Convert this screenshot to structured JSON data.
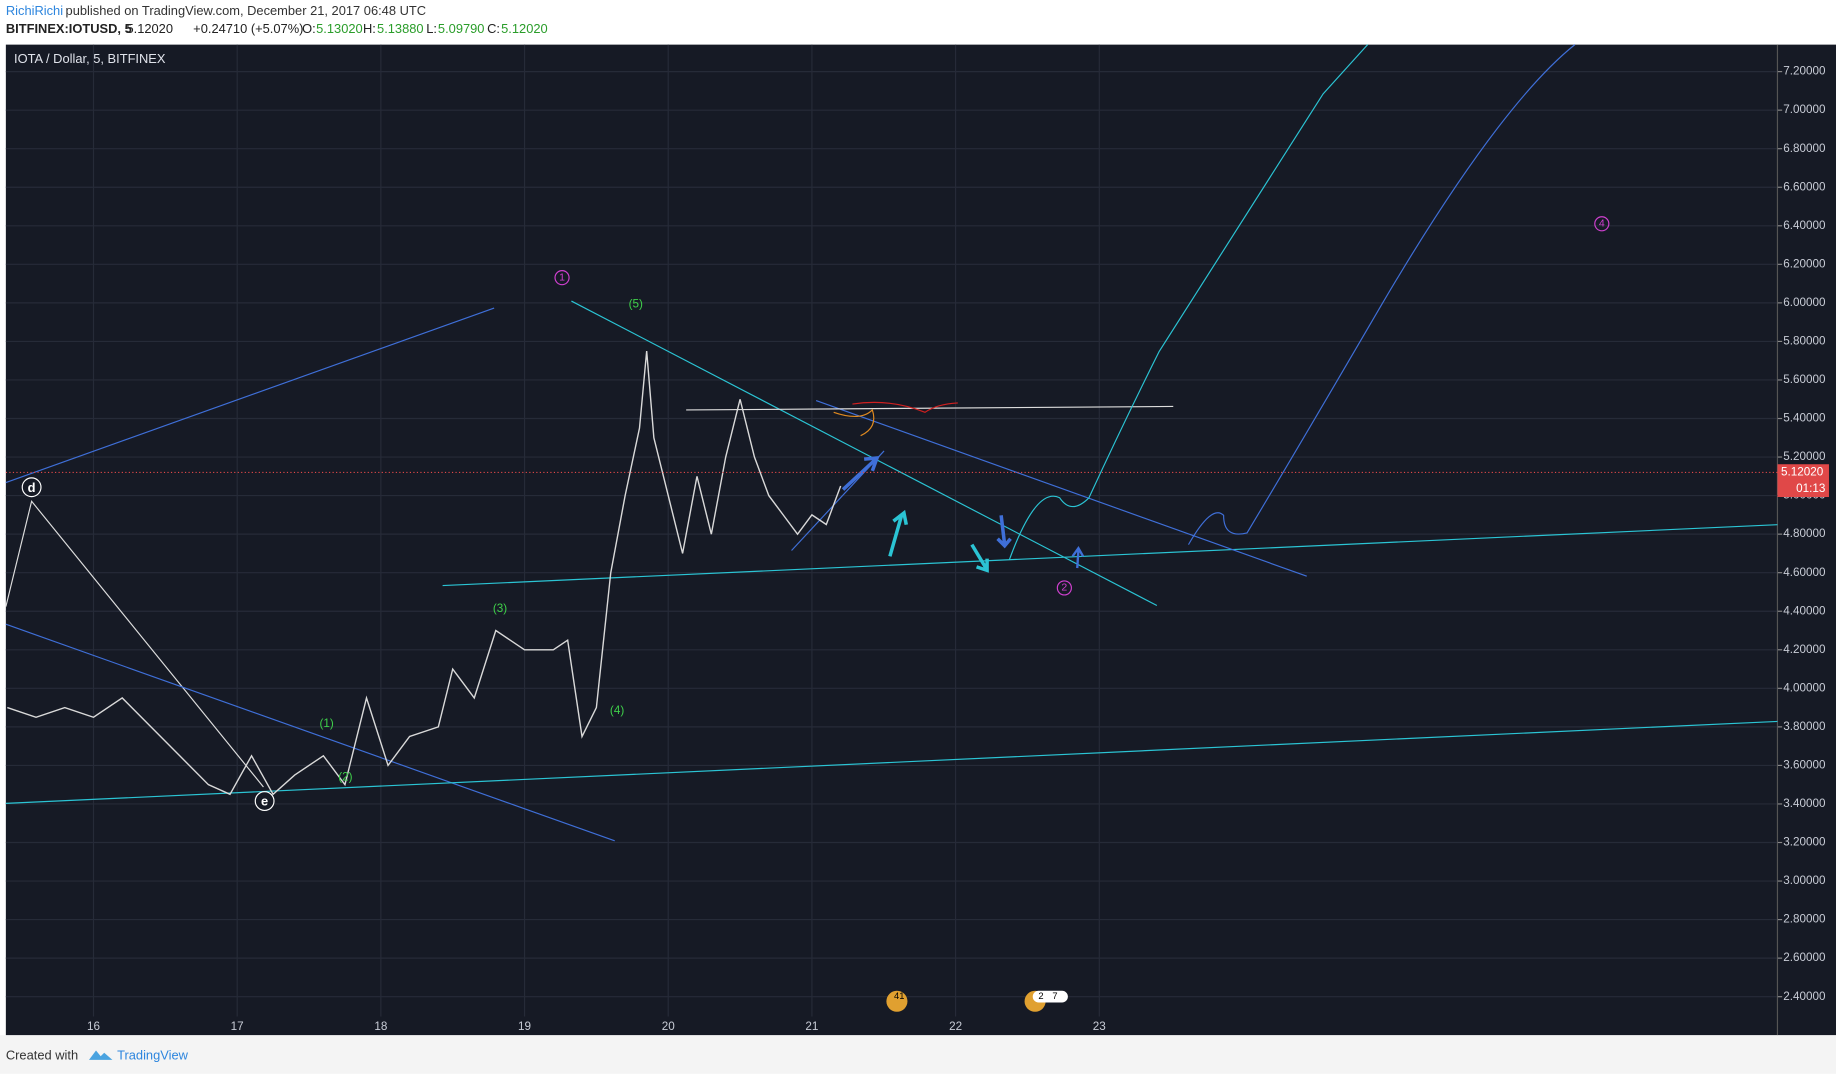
{
  "header": {
    "author": "RichiRichi",
    "published": "published on TradingView.com, December 21, 2017 06:48 UTC",
    "symbol": "BITFINEX:IOTUSD, 5",
    "last": "5.12020",
    "change": "+0.24710 (+5.07%)",
    "o_label": "O:",
    "o": "5.13020",
    "h_label": "H:",
    "h": "5.13880",
    "l_label": "L:",
    "l": "5.09790",
    "c_label": "C:",
    "c": "5.12020"
  },
  "chart_data": {
    "type": "line",
    "title": "IOTA / Dollar, 5, BITFINEX",
    "x": [
      15.4,
      15.6,
      15.8,
      16.0,
      16.2,
      16.4,
      16.6,
      16.8,
      16.95,
      17.1,
      17.25,
      17.4,
      17.6,
      17.75,
      17.9,
      18.05,
      18.2,
      18.4,
      18.5,
      18.65,
      18.8,
      19.0,
      19.2,
      19.3,
      19.4,
      19.5,
      19.6,
      19.7,
      19.8,
      19.85,
      19.9,
      20.0,
      20.1,
      20.2,
      20.3,
      20.4,
      20.5,
      20.6,
      20.7,
      20.8,
      20.9,
      21.0,
      21.1,
      21.2
    ],
    "series": [
      {
        "name": "IOTUSD",
        "color": "#d9d9d9",
        "values": [
          3.9,
          3.85,
          3.9,
          3.85,
          3.95,
          3.8,
          3.65,
          3.5,
          3.45,
          3.65,
          3.45,
          3.55,
          3.65,
          3.5,
          3.95,
          3.6,
          3.75,
          3.8,
          4.1,
          3.95,
          4.3,
          4.2,
          4.2,
          4.25,
          3.75,
          3.9,
          4.6,
          5.0,
          5.35,
          5.75,
          5.3,
          5.0,
          4.7,
          5.1,
          4.8,
          5.2,
          5.5,
          5.2,
          5.0,
          4.9,
          4.8,
          4.9,
          4.85,
          5.05
        ]
      }
    ],
    "xlim": [
      15.39,
      27.72
    ],
    "xticks": [
      16,
      17,
      18,
      19,
      20,
      21,
      22,
      23
    ],
    "ylim": [
      2.2,
      7.34
    ],
    "yticks": [
      {
        "value": 2.4,
        "label": "2.40000"
      },
      {
        "value": 2.6,
        "label": "2.60000"
      },
      {
        "value": 2.8,
        "label": "2.80000"
      },
      {
        "value": 3.0,
        "label": "3.00000"
      },
      {
        "value": 3.2,
        "label": "3.20000"
      },
      {
        "value": 3.4,
        "label": "3.40000"
      },
      {
        "value": 3.6,
        "label": "3.60000"
      },
      {
        "value": 3.8,
        "label": "3.80000"
      },
      {
        "value": 4.0,
        "label": "4.00000"
      },
      {
        "value": 4.2,
        "label": "4.20000"
      },
      {
        "value": 4.4,
        "label": "4.40000"
      },
      {
        "value": 4.6,
        "label": "4.60000"
      },
      {
        "value": 4.8,
        "label": "4.80000"
      },
      {
        "value": 5.0,
        "label": "5.00000"
      },
      {
        "value": 5.2,
        "label": "5.20000"
      },
      {
        "value": 5.4,
        "label": "5.40000"
      },
      {
        "value": 5.6,
        "label": "5.60000"
      },
      {
        "value": 5.8,
        "label": "5.80000"
      },
      {
        "value": 6.0,
        "label": "6.00000"
      },
      {
        "value": 6.2,
        "label": "6.20000"
      },
      {
        "value": 6.4,
        "label": "6.40000"
      },
      {
        "value": 6.6,
        "label": "6.60000"
      },
      {
        "value": 6.8,
        "label": "6.80000"
      },
      {
        "value": 7.0,
        "label": "7.00000"
      },
      {
        "value": 7.2,
        "label": "7.20000"
      }
    ],
    "grid": true,
    "last_price": {
      "value": 5.1202,
      "label": "5.12020"
    },
    "countdown": "01:13",
    "waves": [
      "(1)",
      "(2)",
      "(3)",
      "(4)",
      "(5)",
      "1",
      "2",
      "4",
      "d",
      "e"
    ],
    "events": [
      "41",
      "2",
      "7"
    ]
  },
  "footer": {
    "created": "Created with",
    "brand": "TradingView"
  }
}
